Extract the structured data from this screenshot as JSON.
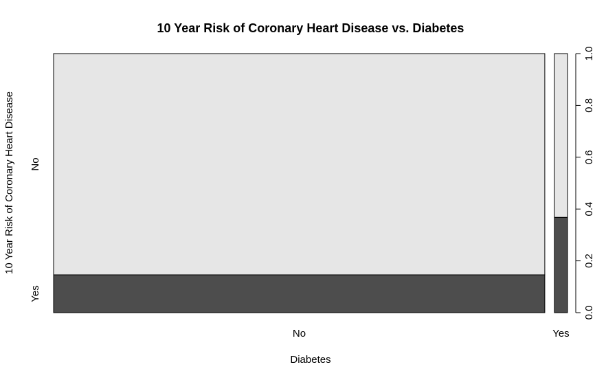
{
  "chart_data": {
    "type": "spineplot",
    "title": "10 Year Risk of Coronary Heart Disease vs. Diabetes",
    "xlabel": "Diabetes",
    "ylabel": "10 Year Risk of Coronary Heart Disease",
    "x_categories": [
      "No",
      "Yes"
    ],
    "y_categories": [
      "Yes",
      "No"
    ],
    "x_proportions": [
      0.974,
      0.026
    ],
    "series": [
      {
        "name": "Yes",
        "values": [
          0.146,
          0.368
        ]
      },
      {
        "name": "No",
        "values": [
          0.854,
          0.632
        ]
      }
    ],
    "colors": {
      "Yes": "#4d4d4d",
      "No": "#e6e6e6"
    },
    "right_axis_ticks": [
      "0.0",
      "0.2",
      "0.4",
      "0.6",
      "0.8",
      "1.0"
    ],
    "ylim": [
      0,
      1
    ],
    "grid": false
  }
}
